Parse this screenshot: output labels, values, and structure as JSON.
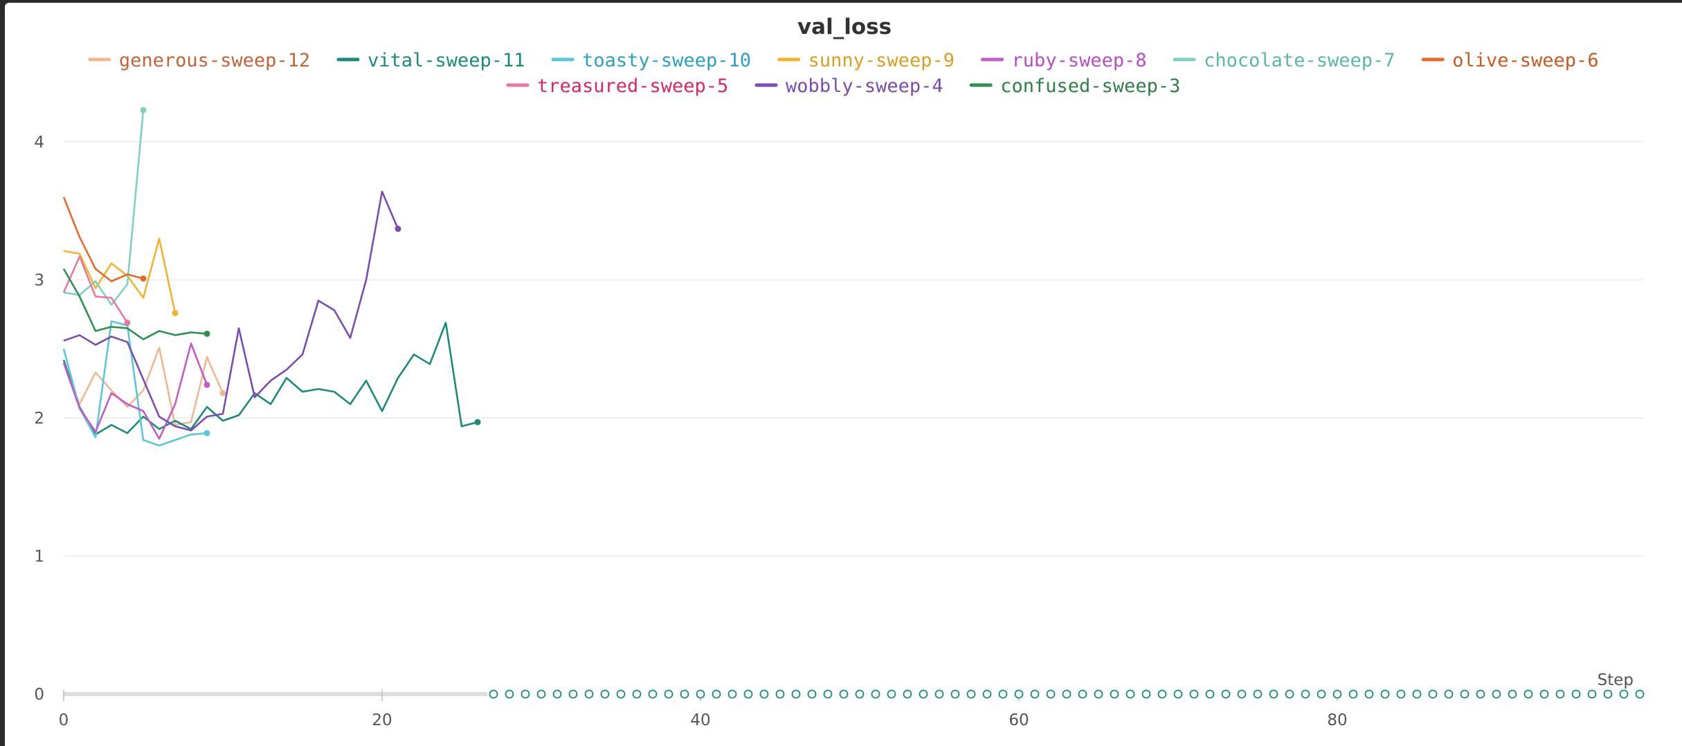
{
  "chart_data": {
    "type": "line",
    "title": "val_loss",
    "xlabel": "Step",
    "ylabel": "",
    "xlim": [
      0,
      99
    ],
    "ylim": [
      0,
      4.3
    ],
    "x_ticks": [
      0,
      20,
      40,
      60,
      80
    ],
    "y_ticks": [
      0,
      1,
      2,
      3,
      4
    ],
    "grid": true,
    "legend_position": "top-center",
    "series": [
      {
        "name": "generous-sweep-12",
        "color": "#f0b890",
        "text_color": "#c0643a",
        "x": [
          0,
          1,
          2,
          3,
          4,
          5,
          6,
          7,
          8,
          9,
          10
        ],
        "y": [
          2.4,
          2.1,
          2.33,
          2.2,
          2.08,
          2.2,
          2.51,
          1.95,
          1.97,
          2.44,
          2.18
        ]
      },
      {
        "name": "vital-sweep-11",
        "color": "#1a8a7a",
        "text_color": "#1a8a7a",
        "x": [
          0,
          1,
          2,
          3,
          4,
          5,
          6,
          7,
          8,
          9,
          10,
          11,
          12,
          13,
          14,
          15,
          16,
          17,
          18,
          19,
          20,
          21,
          22,
          23,
          24,
          25,
          26
        ],
        "y": [
          2.42,
          2.08,
          1.88,
          1.95,
          1.89,
          2.01,
          1.92,
          1.98,
          1.92,
          2.08,
          1.98,
          2.02,
          2.18,
          2.1,
          2.29,
          2.19,
          2.21,
          2.19,
          2.1,
          2.27,
          2.05,
          2.29,
          2.46,
          2.39,
          2.69,
          1.94,
          1.97
        ]
      },
      {
        "name": "toasty-sweep-10",
        "color": "#5ac8d8",
        "text_color": "#2aa0c0",
        "x": [
          0,
          1,
          2,
          3,
          4,
          5,
          6,
          7,
          8,
          9
        ],
        "y": [
          2.5,
          2.07,
          1.86,
          2.7,
          2.67,
          1.84,
          1.8,
          1.84,
          1.88,
          1.89
        ]
      },
      {
        "name": "sunny-sweep-9",
        "color": "#f0b42a",
        "text_color": "#d8a020",
        "x": [
          0,
          1,
          2,
          3,
          4,
          5,
          6,
          7
        ],
        "y": [
          3.21,
          3.19,
          2.94,
          3.12,
          3.03,
          2.87,
          3.3,
          2.76
        ]
      },
      {
        "name": "ruby-sweep-8",
        "color": "#c45cc8",
        "text_color": "#b84cc4",
        "x": [
          0,
          1,
          2,
          3,
          4,
          5,
          6,
          7,
          8,
          9
        ],
        "y": [
          2.4,
          2.07,
          1.9,
          2.18,
          2.1,
          2.05,
          1.85,
          2.1,
          2.54,
          2.24
        ]
      },
      {
        "name": "chocolate-sweep-7",
        "color": "#7fd0c0",
        "text_color": "#5ab8a8",
        "x": [
          0,
          1,
          2,
          3,
          4,
          5
        ],
        "y": [
          2.91,
          2.89,
          2.99,
          2.82,
          2.97,
          4.23
        ]
      },
      {
        "name": "olive-sweep-6",
        "color": "#e8682a",
        "text_color": "#c85a20",
        "x": [
          0,
          1,
          2,
          3,
          4,
          5
        ],
        "y": [
          3.6,
          3.31,
          3.08,
          2.99,
          3.04,
          3.01
        ]
      },
      {
        "name": "treasured-sweep-5",
        "color": "#e87aa0",
        "text_color": "#d82860",
        "x": [
          0,
          1,
          2,
          3,
          4
        ],
        "y": [
          2.91,
          3.17,
          2.88,
          2.87,
          2.69
        ]
      },
      {
        "name": "wobbly-sweep-4",
        "color": "#7a4cb0",
        "text_color": "#7a4cb0",
        "x": [
          0,
          1,
          2,
          3,
          4,
          5,
          6,
          7,
          8,
          9,
          10,
          11,
          12,
          13,
          14,
          15,
          16,
          17,
          18,
          19,
          20,
          21
        ],
        "y": [
          2.56,
          2.6,
          2.53,
          2.59,
          2.55,
          2.28,
          2.01,
          1.94,
          1.91,
          2.01,
          2.03,
          2.65,
          2.15,
          2.27,
          2.35,
          2.46,
          2.85,
          2.78,
          2.58,
          3.0,
          3.64,
          3.37
        ]
      },
      {
        "name": "confused-sweep-3",
        "color": "#2e9050",
        "text_color": "#2e8048",
        "x": [
          0,
          1,
          2,
          3,
          4,
          5,
          6,
          7,
          8,
          9
        ],
        "y": [
          3.08,
          2.88,
          2.63,
          2.66,
          2.65,
          2.57,
          2.63,
          2.6,
          2.62,
          2.61
        ]
      }
    ],
    "zero_markers": {
      "color": "#1a8a7a",
      "x_from": 27,
      "x_to": 99,
      "y": 0
    }
  }
}
